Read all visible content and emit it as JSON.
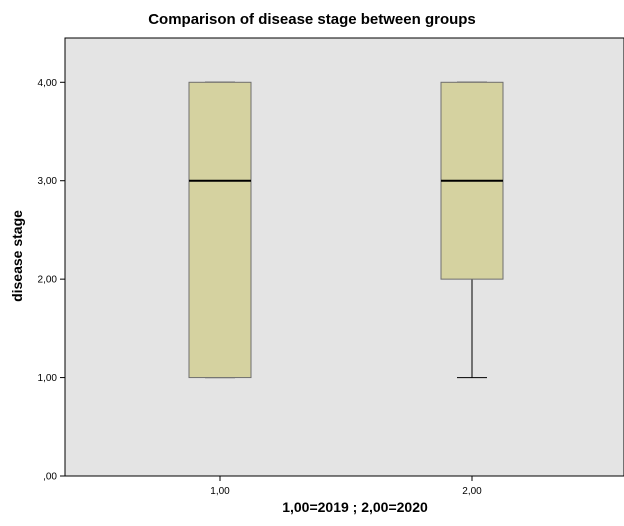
{
  "chart_data": {
    "type": "boxplot",
    "title": "Comparison of disease stage between groups",
    "xlabel": "1,00=2019 ; 2,00=2020",
    "ylabel": "disease stage",
    "ylim": [
      0,
      4.45
    ],
    "y_ticks": [
      {
        "value": 0,
        "label": ",00"
      },
      {
        "value": 1,
        "label": "1,00"
      },
      {
        "value": 2,
        "label": "2,00"
      },
      {
        "value": 3,
        "label": "3,00"
      },
      {
        "value": 4,
        "label": "4,00"
      }
    ],
    "categories": [
      "1,00",
      "2,00"
    ],
    "boxes": [
      {
        "category": "1,00",
        "min": 1,
        "q1": 1,
        "median": 3,
        "q3": 4,
        "max": 4
      },
      {
        "category": "2,00",
        "min": 1,
        "q1": 2,
        "median": 3,
        "q3": 4,
        "max": 4
      }
    ],
    "grid": false,
    "colors": {
      "plot_background": "#e4e4e4",
      "box_fill": "#d5d2a0",
      "box_stroke": "#6e6e6e",
      "median": "#000000"
    }
  }
}
